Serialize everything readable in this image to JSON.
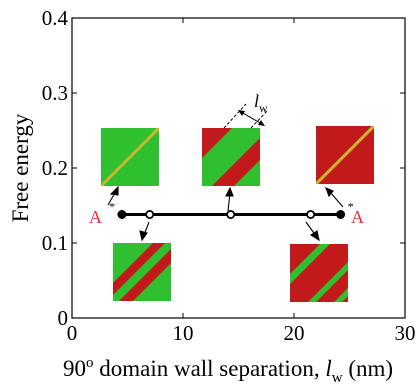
{
  "colors": {
    "green": "#2fbf2f",
    "red": "#c21a1a",
    "wall": "#c9b92a",
    "highlight_point": "#e8303a",
    "line": "#000000",
    "axis": "#000000"
  },
  "chart_data": {
    "type": "line",
    "xlabel_prefix": "90",
    "xlabel_sup": "o",
    "xlabel_main": " domain wall separation, ",
    "xlabel_var": "l",
    "xlabel_sub": "w",
    "xlabel_unit": " (nm)",
    "ylabel": "Free energy",
    "xlim": [
      0,
      30
    ],
    "ylim": [
      0,
      0.4
    ],
    "xticks": [
      0,
      10,
      20,
      30
    ],
    "xtick_labels": [
      "0",
      "10",
      "20",
      "30"
    ],
    "yticks": [
      0,
      0.1,
      0.2,
      0.3,
      0.4
    ],
    "ytick_labels": [
      "0",
      "0.1",
      "0.2",
      "0.3",
      "0.4"
    ],
    "grid": false,
    "series": [
      {
        "x": [
          4.5,
          7.0,
          14.3,
          21.5,
          24.2
        ],
        "y": [
          0.138,
          0.138,
          0.138,
          0.138,
          0.138
        ],
        "markers": [
          "filled",
          "open",
          "open",
          "open",
          "filled"
        ]
      }
    ],
    "annotations": {
      "point_labels": [
        {
          "text": "A",
          "x": 4.5,
          "y": 0.138
        },
        {
          "text": "A",
          "x": 24.2,
          "y": 0.138
        }
      ],
      "lw_label": "l",
      "lw_sub": "w"
    },
    "insets": [
      {
        "pattern": "single-wall",
        "base": "green",
        "separation": "none"
      },
      {
        "pattern": "stripes",
        "base": "red",
        "separation": "medium"
      },
      {
        "pattern": "single-wall",
        "base": "red",
        "separation": "none"
      },
      {
        "pattern": "stripes",
        "base": "green",
        "separation": "small"
      },
      {
        "pattern": "stripes",
        "base": "red",
        "separation": "large"
      }
    ]
  }
}
